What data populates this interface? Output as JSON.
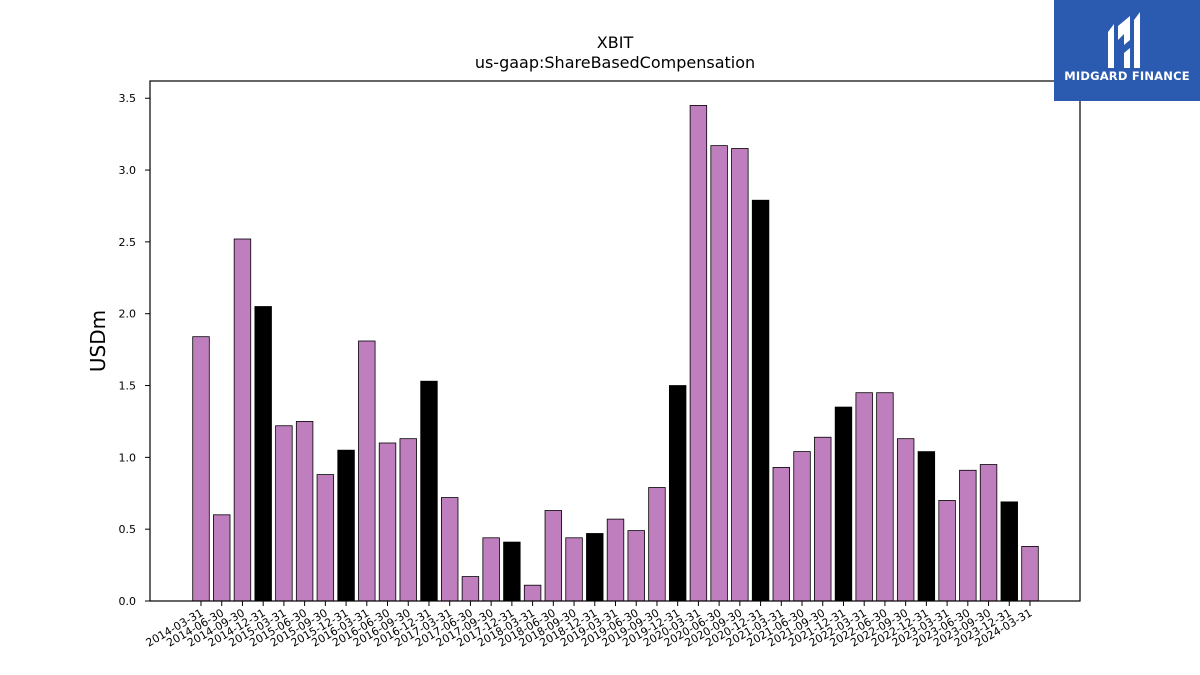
{
  "brand": {
    "name": "MIDGARD FINANCE",
    "logo_icon": "midgard-m-monogram-icon",
    "background_color": "#2b5bb0"
  },
  "chart_data": {
    "type": "bar",
    "title": "XBIT",
    "subtitle": "us-gaap:ShareBasedCompensation",
    "xlabel": "",
    "ylabel": "USDm",
    "ylim": [
      0,
      3.62
    ],
    "yticks": [
      "0.0",
      "0.5",
      "1.0",
      "1.5",
      "2.0",
      "2.5",
      "3.0",
      "3.5"
    ],
    "grid": false,
    "colors": {
      "quarter": "#bf7fbf",
      "fiscal_year_end": "#000000"
    },
    "categories": [
      "2014-03-31",
      "2014-06-30",
      "2014-09-30",
      "2014-12-31",
      "2015-03-31",
      "2015-06-30",
      "2015-09-30",
      "2015-12-31",
      "2016-03-31",
      "2016-06-30",
      "2016-09-30",
      "2016-12-31",
      "2017-03-31",
      "2017-06-30",
      "2017-09-30",
      "2017-12-31",
      "2018-03-31",
      "2018-06-30",
      "2018-09-30",
      "2018-12-31",
      "2019-03-31",
      "2019-06-30",
      "2019-09-30",
      "2019-12-31",
      "2020-03-31",
      "2020-06-30",
      "2020-09-30",
      "2020-12-31",
      "2021-03-31",
      "2021-06-30",
      "2021-09-30",
      "2021-12-31",
      "2022-03-31",
      "2022-06-30",
      "2022-09-30",
      "2022-12-31",
      "2023-03-31",
      "2023-06-30",
      "2023-09-30",
      "2023-12-31",
      "2024-03-31"
    ],
    "values": [
      1.84,
      0.6,
      2.52,
      2.05,
      1.22,
      1.25,
      0.88,
      1.05,
      1.81,
      1.1,
      1.13,
      1.53,
      0.72,
      0.17,
      0.44,
      0.41,
      0.11,
      0.63,
      0.44,
      0.47,
      0.57,
      0.49,
      0.79,
      1.5,
      3.45,
      3.17,
      3.15,
      2.79,
      0.93,
      1.04,
      1.14,
      1.35,
      1.45,
      1.45,
      1.13,
      1.04,
      0.7,
      0.91,
      0.95,
      0.69,
      0.38
    ],
    "fiscal_year_end_flags": [
      false,
      false,
      false,
      true,
      false,
      false,
      false,
      true,
      false,
      false,
      false,
      true,
      false,
      false,
      false,
      true,
      false,
      false,
      false,
      true,
      false,
      false,
      false,
      true,
      false,
      false,
      false,
      true,
      false,
      false,
      false,
      true,
      false,
      false,
      false,
      true,
      false,
      false,
      false,
      true,
      false
    ]
  }
}
